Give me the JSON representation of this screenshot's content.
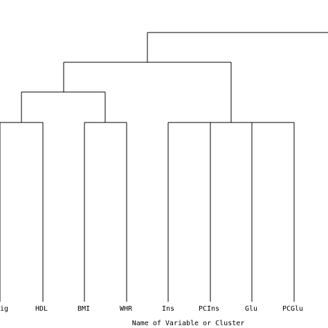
{
  "dendrogram": {
    "axis_label": "Name of Variable or Cluster",
    "leaves": [
      {
        "id": "trig",
        "label": "ig"
      },
      {
        "id": "hdl",
        "label": "HDL"
      },
      {
        "id": "bmi",
        "label": "BMI"
      },
      {
        "id": "whr",
        "label": "WHR"
      },
      {
        "id": "ins",
        "label": "Ins"
      },
      {
        "id": "pcins",
        "label": "PCIns"
      },
      {
        "id": "glu",
        "label": "Glu"
      },
      {
        "id": "pcglu",
        "label": "PCGlu"
      }
    ],
    "line_color": "#000000"
  }
}
